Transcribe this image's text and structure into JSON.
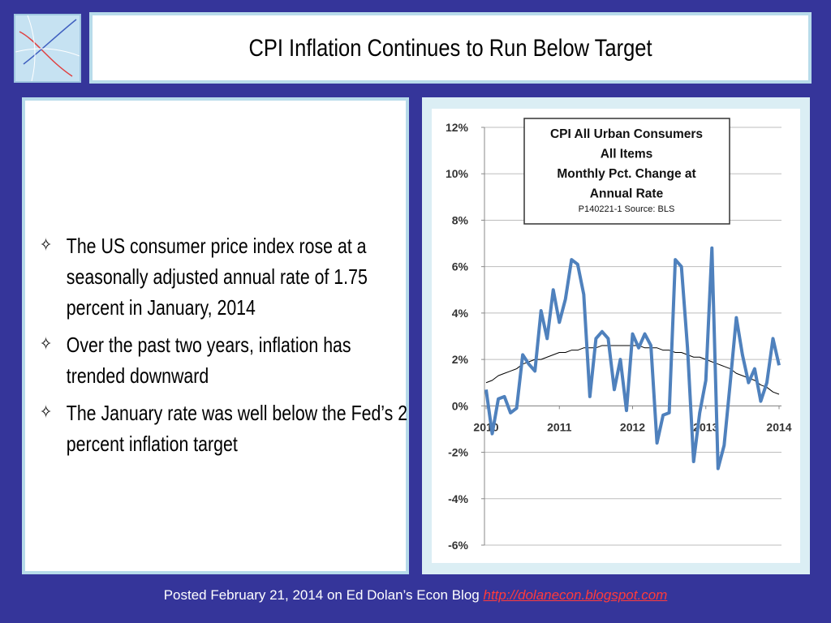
{
  "header": {
    "title": "CPI Inflation Continues to Run Below Target"
  },
  "bullets": [
    "The US consumer price index rose at a seasonally adjusted annual rate of 1.75 percent in January, 2014",
    "Over the past two years, inflation has trended downward",
    "The January rate was well below the Fed’s 2 percent inflation target"
  ],
  "footer": {
    "text": "Posted February 21, 2014 on Ed Dolan’s Econ Blog",
    "link": "http://dolanecon.blogspot.com"
  },
  "chart_data": {
    "type": "line",
    "title_lines": [
      "CPI All Urban Consumers",
      "All Items",
      "Monthly Pct. Change at",
      "Annual Rate"
    ],
    "source": "P140221-1 Source: BLS",
    "x": [
      2010,
      2010.0833,
      2010.1667,
      2010.25,
      2010.3333,
      2010.4167,
      2010.5,
      2010.5833,
      2010.6667,
      2010.75,
      2010.8333,
      2010.9167,
      2011,
      2011.0833,
      2011.1667,
      2011.25,
      2011.3333,
      2011.4167,
      2011.5,
      2011.5833,
      2011.6667,
      2011.75,
      2011.8333,
      2011.9167,
      2012,
      2012.0833,
      2012.1667,
      2012.25,
      2012.3333,
      2012.4167,
      2012.5,
      2012.5833,
      2012.6667,
      2012.75,
      2012.8333,
      2012.9167,
      2013,
      2013.0833,
      2013.1667,
      2013.25,
      2013.3333,
      2013.4167,
      2013.5,
      2013.5833,
      2013.6667,
      2013.75,
      2013.8333,
      2013.9167,
      2014
    ],
    "series": [
      {
        "color": "#4f81bd",
        "values": [
          0.7,
          -1.2,
          0.3,
          0.4,
          -0.3,
          -0.1,
          2.2,
          1.8,
          1.5,
          4.1,
          2.9,
          5.0,
          3.6,
          4.6,
          6.3,
          6.1,
          4.8,
          0.4,
          2.9,
          3.2,
          2.9,
          0.7,
          2.0,
          -0.2,
          3.1,
          2.5,
          3.1,
          2.6,
          -1.6,
          -0.4,
          -0.3,
          6.3,
          6.0,
          2.5,
          -2.4,
          -0.3,
          1.1,
          6.8,
          -2.7,
          -1.7,
          1.0,
          3.8,
          2.2,
          1.0,
          1.6,
          0.2,
          1.0,
          2.9,
          1.75
        ]
      },
      {
        "color": "#000000",
        "values": [
          1.0,
          1.1,
          1.3,
          1.4,
          1.5,
          1.6,
          1.8,
          1.9,
          2.0,
          2.0,
          2.1,
          2.2,
          2.3,
          2.3,
          2.4,
          2.4,
          2.5,
          2.5,
          2.5,
          2.6,
          2.6,
          2.6,
          2.6,
          2.6,
          2.6,
          2.6,
          2.5,
          2.5,
          2.5,
          2.4,
          2.4,
          2.3,
          2.3,
          2.2,
          2.1,
          2.1,
          2.0,
          1.9,
          1.8,
          1.7,
          1.6,
          1.4,
          1.3,
          1.2,
          1.1,
          0.9,
          0.8,
          0.6,
          0.5
        ]
      }
    ],
    "xlim": [
      2010,
      2014
    ],
    "xticks": [
      2010,
      2011,
      2012,
      2013,
      2014
    ],
    "ylim": [
      -6,
      12
    ],
    "yticks": [
      {
        "value": -6,
        "label": "-6%"
      },
      {
        "value": -4,
        "label": "-4%"
      },
      {
        "value": -2,
        "label": "-2%"
      },
      {
        "value": 0,
        "label": "0%"
      },
      {
        "value": 2,
        "label": "2%"
      },
      {
        "value": 4,
        "label": "4%"
      },
      {
        "value": 6,
        "label": "6%"
      },
      {
        "value": 8,
        "label": "8%"
      },
      {
        "value": 10,
        "label": "10%"
      },
      {
        "value": 12,
        "label": "12%"
      }
    ],
    "grid": true
  }
}
